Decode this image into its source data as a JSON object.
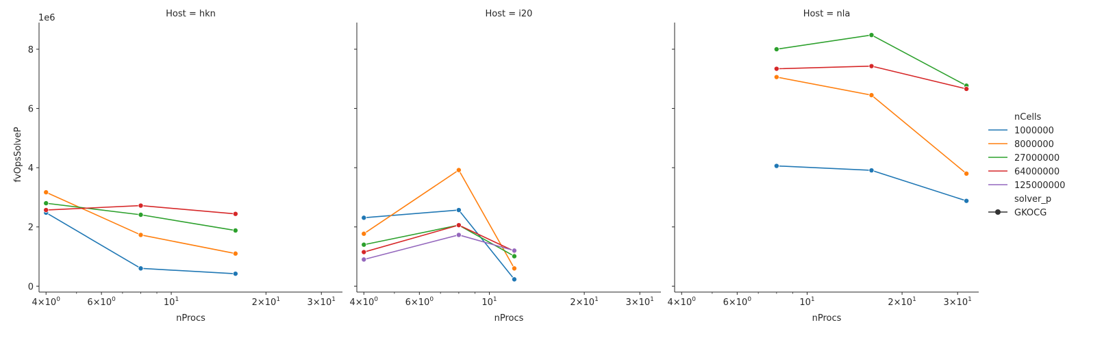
{
  "chart_data": {
    "type": "line",
    "title_prefix": "Host = ",
    "xlabel": "nProcs",
    "ylabel": "fvOpsSolveP",
    "y_offset_text": "1e6",
    "x_scale": "log",
    "xlim": [
      3.8,
      35
    ],
    "ylim": [
      -200000,
      8900000
    ],
    "x_ticks": [
      {
        "value": 4,
        "base": "4×10",
        "exp": "0"
      },
      {
        "value": 6,
        "base": "6×10",
        "exp": "0"
      },
      {
        "value": 10,
        "base": "10",
        "exp": "1"
      },
      {
        "value": 20,
        "base": "2×10",
        "exp": "1"
      },
      {
        "value": 30,
        "base": "3×10",
        "exp": "1"
      }
    ],
    "x_minor_ticks": [
      5,
      7,
      8,
      9
    ],
    "y_ticks": [
      {
        "value": 0,
        "label": "0"
      },
      {
        "value": 2000000,
        "label": "2"
      },
      {
        "value": 4000000,
        "label": "4"
      },
      {
        "value": 6000000,
        "label": "6"
      },
      {
        "value": 8000000,
        "label": "8"
      }
    ],
    "marker": "circle",
    "legend": {
      "placement": "right",
      "hue_title": "nCells",
      "style_title": "solver_p",
      "style_entries": [
        "GKOCG"
      ]
    },
    "series_colors": {
      "1000000": "#1f77b4",
      "8000000": "#ff7f0e",
      "27000000": "#2ca02c",
      "64000000": "#d62728",
      "125000000": "#9467bd"
    },
    "hue_order": [
      "1000000",
      "8000000",
      "27000000",
      "64000000",
      "125000000"
    ],
    "panels": [
      {
        "host": "hkn",
        "series": [
          {
            "name": "1000000",
            "x": [
              4,
              8,
              16
            ],
            "y": [
              2480000,
              600000,
              420000
            ]
          },
          {
            "name": "8000000",
            "x": [
              4,
              8,
              16
            ],
            "y": [
              3170000,
              1730000,
              1100000
            ]
          },
          {
            "name": "27000000",
            "x": [
              4,
              8,
              16
            ],
            "y": [
              2800000,
              2410000,
              1880000
            ]
          },
          {
            "name": "64000000",
            "x": [
              4,
              8,
              16
            ],
            "y": [
              2570000,
              2720000,
              2440000
            ]
          }
        ]
      },
      {
        "host": "i20",
        "series": [
          {
            "name": "1000000",
            "x": [
              4,
              8,
              12
            ],
            "y": [
              2310000,
              2570000,
              230000
            ]
          },
          {
            "name": "8000000",
            "x": [
              4,
              8,
              12
            ],
            "y": [
              1770000,
              3920000,
              600000
            ]
          },
          {
            "name": "27000000",
            "x": [
              4,
              8,
              12
            ],
            "y": [
              1400000,
              2060000,
              1010000
            ]
          },
          {
            "name": "64000000",
            "x": [
              4,
              8,
              12
            ],
            "y": [
              1150000,
              2060000,
              1180000
            ]
          },
          {
            "name": "125000000",
            "x": [
              4,
              8,
              12
            ],
            "y": [
              900000,
              1730000,
              1200000
            ]
          }
        ]
      },
      {
        "host": "nla",
        "series": [
          {
            "name": "1000000",
            "x": [
              8,
              16,
              32
            ],
            "y": [
              4060000,
              3910000,
              2880000
            ]
          },
          {
            "name": "8000000",
            "x": [
              8,
              16,
              32
            ],
            "y": [
              7060000,
              6450000,
              3800000
            ]
          },
          {
            "name": "27000000",
            "x": [
              8,
              16,
              32
            ],
            "y": [
              8000000,
              8480000,
              6770000
            ]
          },
          {
            "name": "64000000",
            "x": [
              8,
              16,
              32
            ],
            "y": [
              7340000,
              7430000,
              6660000
            ]
          }
        ]
      }
    ]
  }
}
